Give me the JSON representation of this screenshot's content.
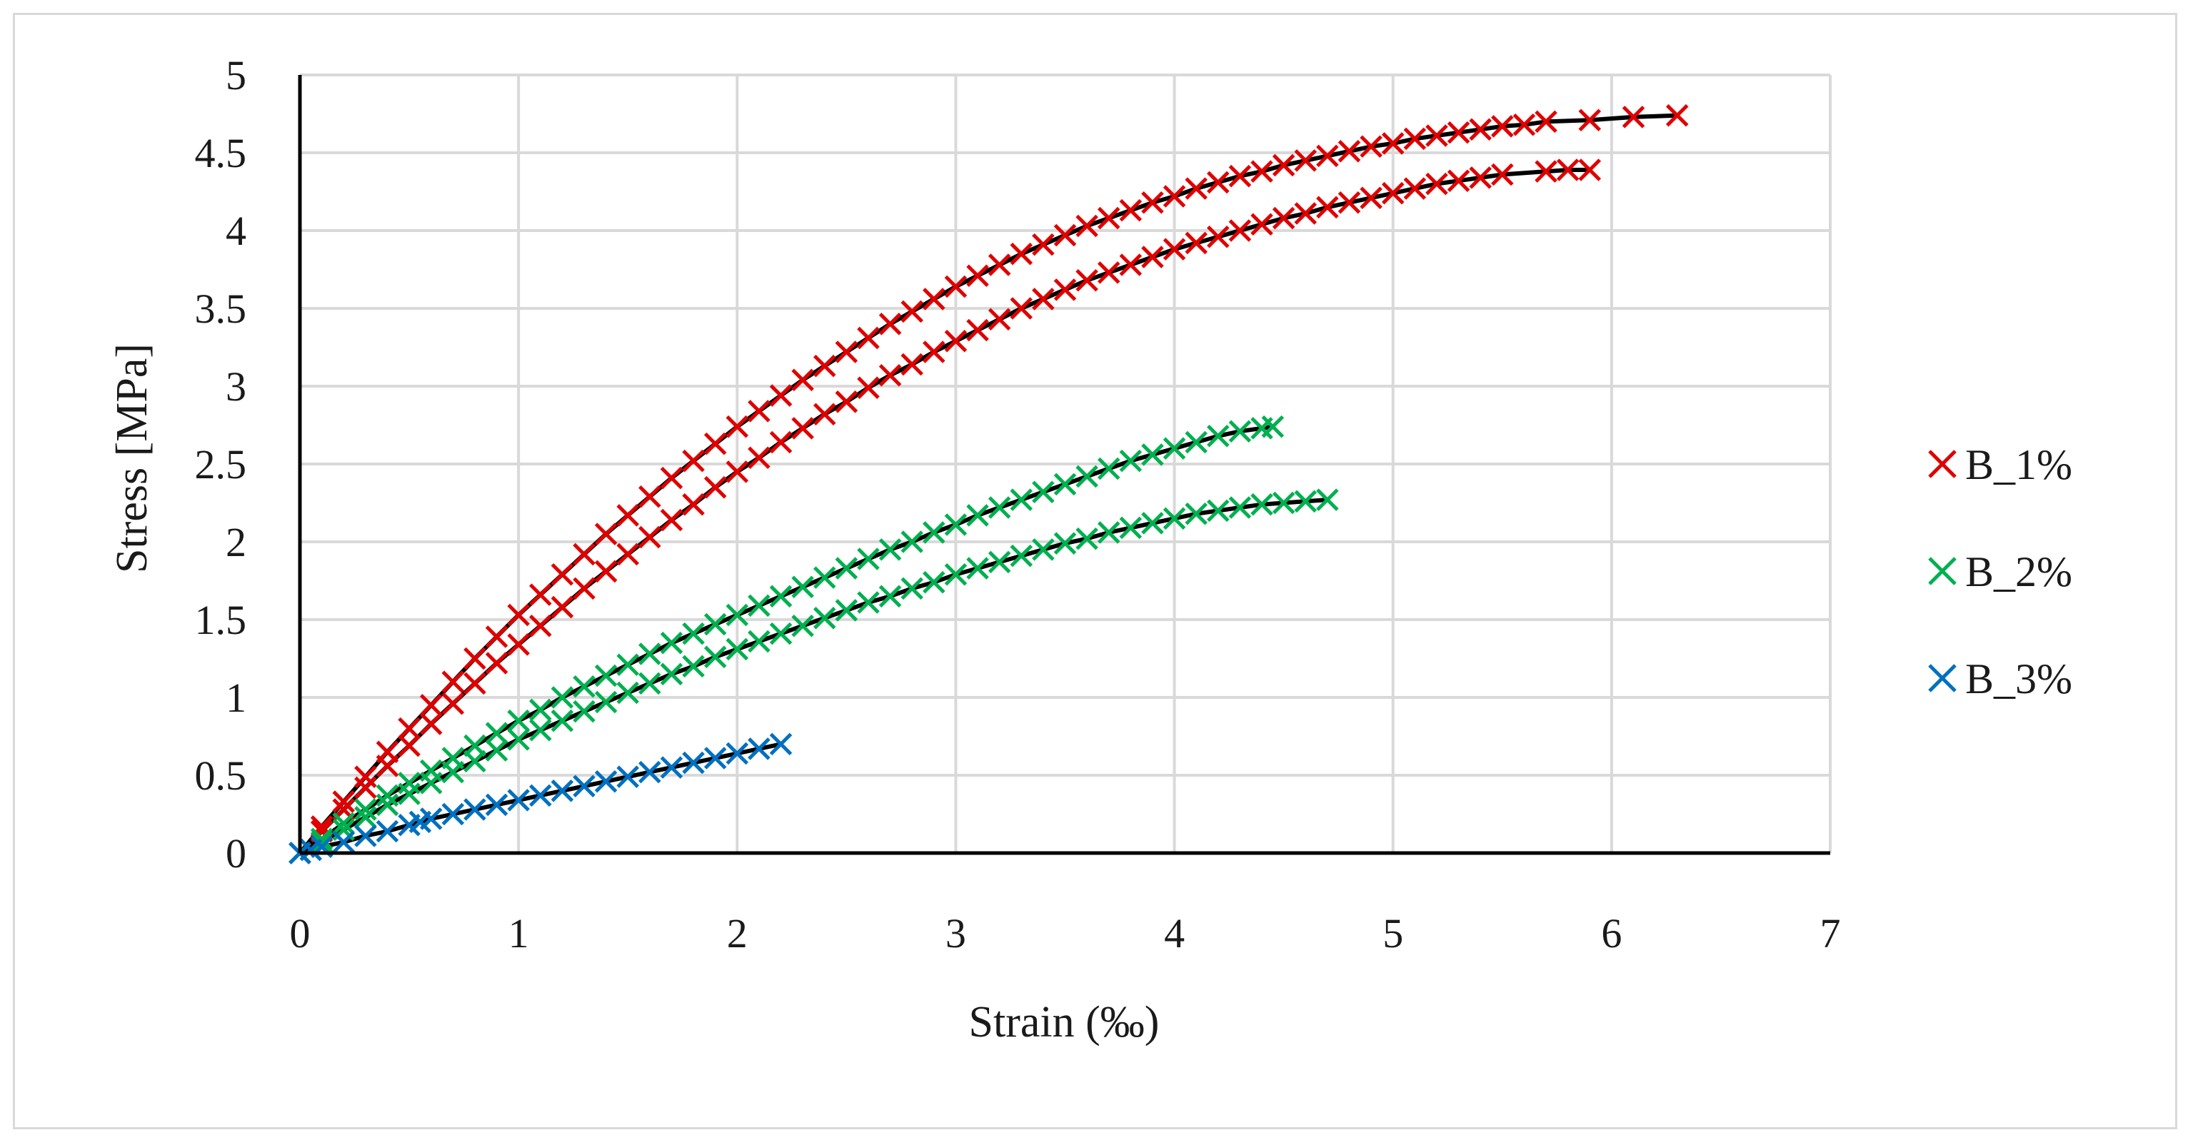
{
  "chart_data": {
    "type": "scatter",
    "title": "",
    "xlabel": "Strain (‰)",
    "ylabel": "Stress [MPa]",
    "xlim": [
      0,
      7
    ],
    "ylim": [
      0,
      5
    ],
    "x_ticks": [
      "0",
      "1",
      "2",
      "3",
      "4",
      "5",
      "6",
      "7"
    ],
    "y_ticks": [
      "0",
      "0.5",
      "1",
      "1.5",
      "2",
      "2.5",
      "3",
      "3.5",
      "4",
      "4.5",
      "5"
    ],
    "grid": true,
    "legend_position": "right",
    "marker": "x",
    "series": [
      {
        "name": "B_1%",
        "color": "#e00000",
        "branches": [
          {
            "x": [
              0.0,
              0.1,
              0.2,
              0.3,
              0.4,
              0.5,
              0.6,
              0.7,
              0.8,
              0.9,
              1.0,
              1.1,
              1.2,
              1.3,
              1.4,
              1.5,
              1.6,
              1.7,
              1.8,
              1.9,
              2.0,
              2.1,
              2.2,
              2.3,
              2.4,
              2.5,
              2.6,
              2.7,
              2.8,
              2.9,
              3.0,
              3.1,
              3.2,
              3.3,
              3.4,
              3.5,
              3.6,
              3.7,
              3.8,
              3.9,
              4.0,
              4.1,
              4.2,
              4.3,
              4.4,
              4.5,
              4.6,
              4.7,
              4.8,
              4.9,
              5.0,
              5.1,
              5.2,
              5.3,
              5.4,
              5.5,
              5.6,
              5.7,
              5.9,
              6.1,
              6.3
            ],
            "y": [
              0.0,
              0.17,
              0.33,
              0.49,
              0.65,
              0.8,
              0.95,
              1.1,
              1.25,
              1.39,
              1.53,
              1.66,
              1.79,
              1.92,
              2.05,
              2.17,
              2.29,
              2.41,
              2.52,
              2.63,
              2.74,
              2.84,
              2.94,
              3.04,
              3.13,
              3.22,
              3.31,
              3.4,
              3.48,
              3.56,
              3.64,
              3.71,
              3.78,
              3.85,
              3.91,
              3.97,
              4.03,
              4.08,
              4.13,
              4.18,
              4.22,
              4.27,
              4.31,
              4.35,
              4.38,
              4.42,
              4.45,
              4.48,
              4.51,
              4.54,
              4.56,
              4.59,
              4.61,
              4.63,
              4.65,
              4.67,
              4.68,
              4.7,
              4.71,
              4.73,
              4.74
            ]
          },
          {
            "x": [
              0.0,
              0.1,
              0.2,
              0.3,
              0.4,
              0.5,
              0.6,
              0.7,
              0.8,
              0.9,
              1.0,
              1.1,
              1.2,
              1.3,
              1.4,
              1.5,
              1.6,
              1.7,
              1.8,
              1.9,
              2.0,
              2.1,
              2.2,
              2.3,
              2.4,
              2.5,
              2.6,
              2.7,
              2.8,
              2.9,
              3.0,
              3.1,
              3.2,
              3.3,
              3.4,
              3.5,
              3.6,
              3.7,
              3.8,
              3.9,
              4.0,
              4.1,
              4.2,
              4.3,
              4.4,
              4.5,
              4.6,
              4.7,
              4.8,
              4.9,
              5.0,
              5.1,
              5.2,
              5.3,
              5.4,
              5.5,
              5.7,
              5.8,
              5.9
            ],
            "y": [
              0.0,
              0.14,
              0.28,
              0.42,
              0.56,
              0.69,
              0.83,
              0.96,
              1.09,
              1.22,
              1.34,
              1.46,
              1.58,
              1.7,
              1.81,
              1.92,
              2.03,
              2.14,
              2.24,
              2.35,
              2.45,
              2.54,
              2.64,
              2.73,
              2.82,
              2.9,
              2.99,
              3.07,
              3.14,
              3.22,
              3.29,
              3.36,
              3.43,
              3.5,
              3.56,
              3.62,
              3.68,
              3.73,
              3.78,
              3.83,
              3.88,
              3.92,
              3.96,
              4.0,
              4.04,
              4.08,
              4.11,
              4.15,
              4.18,
              4.21,
              4.24,
              4.27,
              4.3,
              4.32,
              4.34,
              4.36,
              4.38,
              4.39,
              4.39
            ]
          }
        ]
      },
      {
        "name": "B_2%",
        "color": "#00b050",
        "branches": [
          {
            "x": [
              0.0,
              0.1,
              0.2,
              0.3,
              0.4,
              0.5,
              0.6,
              0.7,
              0.8,
              0.9,
              1.0,
              1.1,
              1.2,
              1.3,
              1.4,
              1.5,
              1.6,
              1.7,
              1.8,
              1.9,
              2.0,
              2.1,
              2.2,
              2.3,
              2.4,
              2.5,
              2.6,
              2.7,
              2.8,
              2.9,
              3.0,
              3.1,
              3.2,
              3.3,
              3.4,
              3.5,
              3.6,
              3.7,
              3.8,
              3.9,
              4.0,
              4.1,
              4.2,
              4.3,
              4.4,
              4.45
            ],
            "y": [
              0.0,
              0.09,
              0.19,
              0.28,
              0.37,
              0.45,
              0.53,
              0.61,
              0.69,
              0.77,
              0.85,
              0.92,
              1.0,
              1.07,
              1.14,
              1.21,
              1.28,
              1.35,
              1.41,
              1.47,
              1.53,
              1.59,
              1.65,
              1.71,
              1.77,
              1.83,
              1.89,
              1.95,
              2.0,
              2.06,
              2.11,
              2.17,
              2.22,
              2.27,
              2.32,
              2.37,
              2.42,
              2.47,
              2.52,
              2.56,
              2.6,
              2.64,
              2.68,
              2.71,
              2.73,
              2.74
            ]
          },
          {
            "x": [
              0.0,
              0.1,
              0.2,
              0.3,
              0.4,
              0.5,
              0.6,
              0.7,
              0.8,
              0.9,
              1.0,
              1.1,
              1.2,
              1.3,
              1.4,
              1.5,
              1.6,
              1.7,
              1.8,
              1.9,
              2.0,
              2.1,
              2.2,
              2.3,
              2.4,
              2.5,
              2.6,
              2.7,
              2.8,
              2.9,
              3.0,
              3.1,
              3.2,
              3.3,
              3.4,
              3.5,
              3.6,
              3.7,
              3.8,
              3.9,
              4.0,
              4.1,
              4.2,
              4.3,
              4.4,
              4.5,
              4.6,
              4.7
            ],
            "y": [
              0.0,
              0.07,
              0.15,
              0.23,
              0.31,
              0.38,
              0.45,
              0.52,
              0.59,
              0.66,
              0.73,
              0.79,
              0.85,
              0.91,
              0.97,
              1.03,
              1.09,
              1.15,
              1.2,
              1.26,
              1.31,
              1.36,
              1.41,
              1.46,
              1.51,
              1.56,
              1.61,
              1.65,
              1.7,
              1.74,
              1.79,
              1.83,
              1.87,
              1.91,
              1.95,
              1.99,
              2.02,
              2.06,
              2.09,
              2.12,
              2.15,
              2.18,
              2.2,
              2.22,
              2.24,
              2.25,
              2.26,
              2.27
            ]
          }
        ]
      },
      {
        "name": "B_3%",
        "color": "#0070c0",
        "branches": [
          {
            "x": [
              0.0,
              0.05,
              0.1,
              0.2,
              0.3,
              0.4,
              0.5,
              0.55,
              0.6,
              0.7,
              0.8,
              0.9,
              1.0,
              1.1,
              1.2,
              1.3,
              1.4,
              1.5,
              1.6,
              1.7,
              1.8,
              1.9,
              2.0,
              2.1,
              2.2
            ],
            "y": [
              0.0,
              0.02,
              0.04,
              0.07,
              0.11,
              0.14,
              0.18,
              0.2,
              0.22,
              0.25,
              0.28,
              0.31,
              0.34,
              0.37,
              0.4,
              0.43,
              0.46,
              0.49,
              0.52,
              0.55,
              0.58,
              0.61,
              0.64,
              0.67,
              0.7
            ]
          }
        ]
      }
    ]
  }
}
